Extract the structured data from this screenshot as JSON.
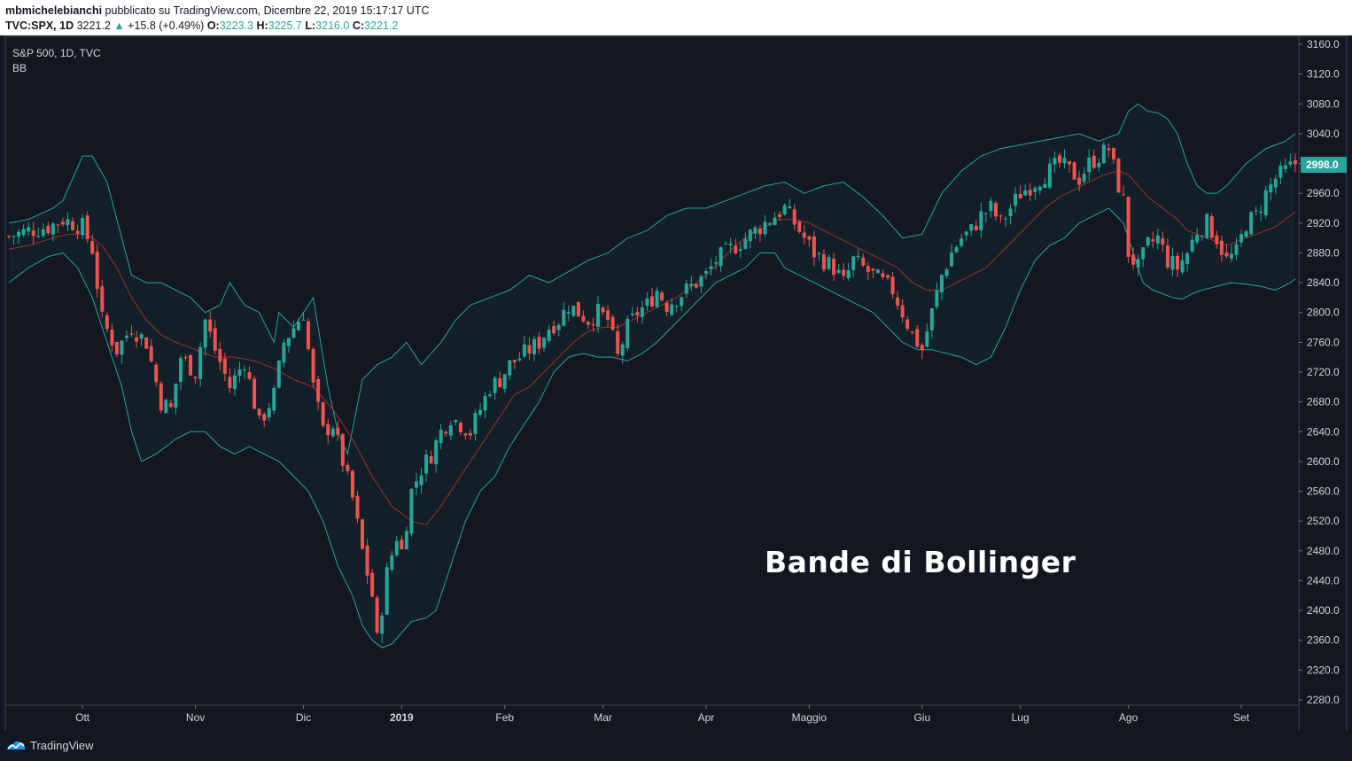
{
  "header": {
    "author": "mbmichelebianchi",
    "published": "pubblicato su TradingView.com, Dicembre 22, 2019 15:17:17 UTC",
    "symbol": "TVC:SPX, 1D",
    "last": "3221.2",
    "change": "+15.8 (+0.49%)",
    "o_label": "O:",
    "o_value": "3223.3",
    "h_label": "H:",
    "h_value": "3225.7",
    "l_label": "L:",
    "l_value": "3216.0",
    "c_label": "C:",
    "c_value": "3221.2"
  },
  "legend": {
    "title": "S&P 500, 1D, TVC",
    "indicator": "BB"
  },
  "caption": "Bande di Bollinger",
  "price_tag": "2998.0",
  "footer": {
    "brand": "TradingView"
  },
  "colors": {
    "background": "#131722",
    "up": "#26a69a",
    "down": "#ef5350",
    "band": "#26a69a",
    "basis": "#a12f2f",
    "axis_text": "#d1d4dc"
  },
  "chart_data": {
    "type": "candlestick",
    "title": "S&P 500, 1D, TVC",
    "indicator": "BB",
    "ylim": [
      2270,
      3170
    ],
    "y_ticks": [
      2280,
      2320,
      2360,
      2400,
      2440,
      2480,
      2520,
      2560,
      2600,
      2640,
      2680,
      2720,
      2760,
      2800,
      2840,
      2880,
      2920,
      2960,
      3000,
      3040,
      3080,
      3120,
      3160
    ],
    "y_tick_labels": [
      "2280.0",
      "2320.0",
      "2360.0",
      "2400.0",
      "2440.0",
      "2480.0",
      "2520.0",
      "2560.0",
      "2600.0",
      "2640.0",
      "2680.0",
      "2720.0",
      "2760.0",
      "2800.0",
      "2840.0",
      "2880.0",
      "2920.0",
      "2960.0",
      "3000.0",
      "3040.0",
      "3080.0",
      "3120.0",
      "3160.0"
    ],
    "x_labels": [
      {
        "label": "Ott",
        "bar": 15
      },
      {
        "label": "Nov",
        "bar": 38
      },
      {
        "label": "Dic",
        "bar": 60
      },
      {
        "label": "2019",
        "bar": 80
      },
      {
        "label": "Feb",
        "bar": 101
      },
      {
        "label": "Mar",
        "bar": 121
      },
      {
        "label": "Apr",
        "bar": 142
      },
      {
        "label": "Maggio",
        "bar": 163
      },
      {
        "label": "Giu",
        "bar": 186
      },
      {
        "label": "Lug",
        "bar": 206
      },
      {
        "label": "Ago",
        "bar": 228
      },
      {
        "label": "Set",
        "bar": 251
      }
    ],
    "close_anchors": [
      [
        0,
        2902
      ],
      [
        4,
        2910
      ],
      [
        8,
        2915
      ],
      [
        11,
        2925
      ],
      [
        15,
        2915
      ],
      [
        17,
        2885
      ],
      [
        19,
        2790
      ],
      [
        22,
        2750
      ],
      [
        25,
        2780
      ],
      [
        28,
        2760
      ],
      [
        31,
        2680
      ],
      [
        33,
        2670
      ],
      [
        35,
        2740
      ],
      [
        38,
        2720
      ],
      [
        40,
        2790
      ],
      [
        42,
        2750
      ],
      [
        45,
        2700
      ],
      [
        48,
        2735
      ],
      [
        51,
        2650
      ],
      [
        54,
        2690
      ],
      [
        56,
        2760
      ],
      [
        58,
        2780
      ],
      [
        60,
        2800
      ],
      [
        62,
        2700
      ],
      [
        64,
        2640
      ],
      [
        66,
        2650
      ],
      [
        68,
        2600
      ],
      [
        70,
        2550
      ],
      [
        72,
        2480
      ],
      [
        74,
        2420
      ],
      [
        75,
        2360
      ],
      [
        77,
        2450
      ],
      [
        79,
        2500
      ],
      [
        80,
        2480
      ],
      [
        82,
        2560
      ],
      [
        84,
        2590
      ],
      [
        86,
        2610
      ],
      [
        88,
        2640
      ],
      [
        90,
        2660
      ],
      [
        92,
        2650
      ],
      [
        94,
        2640
      ],
      [
        96,
        2670
      ],
      [
        98,
        2700
      ],
      [
        100,
        2710
      ],
      [
        102,
        2730
      ],
      [
        104,
        2740
      ],
      [
        106,
        2750
      ],
      [
        108,
        2760
      ],
      [
        110,
        2780
      ],
      [
        112,
        2790
      ],
      [
        114,
        2810
      ],
      [
        116,
        2800
      ],
      [
        118,
        2790
      ],
      [
        120,
        2800
      ],
      [
        122,
        2790
      ],
      [
        124,
        2740
      ],
      [
        126,
        2780
      ],
      [
        128,
        2800
      ],
      [
        130,
        2810
      ],
      [
        132,
        2830
      ],
      [
        134,
        2810
      ],
      [
        136,
        2820
      ],
      [
        138,
        2830
      ],
      [
        140,
        2840
      ],
      [
        142,
        2850
      ],
      [
        144,
        2870
      ],
      [
        146,
        2880
      ],
      [
        148,
        2890
      ],
      [
        150,
        2900
      ],
      [
        152,
        2910
      ],
      [
        154,
        2920
      ],
      [
        156,
        2930
      ],
      [
        158,
        2940
      ],
      [
        160,
        2920
      ],
      [
        162,
        2900
      ],
      [
        164,
        2880
      ],
      [
        166,
        2870
      ],
      [
        168,
        2860
      ],
      [
        170,
        2840
      ],
      [
        172,
        2870
      ],
      [
        174,
        2860
      ],
      [
        176,
        2850
      ],
      [
        178,
        2840
      ],
      [
        180,
        2830
      ],
      [
        182,
        2800
      ],
      [
        184,
        2770
      ],
      [
        186,
        2750
      ],
      [
        188,
        2800
      ],
      [
        190,
        2850
      ],
      [
        192,
        2880
      ],
      [
        194,
        2900
      ],
      [
        196,
        2910
      ],
      [
        198,
        2930
      ],
      [
        200,
        2940
      ],
      [
        202,
        2920
      ],
      [
        204,
        2940
      ],
      [
        206,
        2960
      ],
      [
        208,
        2970
      ],
      [
        210,
        2980
      ],
      [
        212,
        2990
      ],
      [
        214,
        3000
      ],
      [
        216,
        2990
      ],
      [
        218,
        2980
      ],
      [
        220,
        3000
      ],
      [
        222,
        3010
      ],
      [
        224,
        3020
      ],
      [
        226,
        2970
      ],
      [
        227,
        2950
      ],
      [
        228,
        2880
      ],
      [
        230,
        2860
      ],
      [
        232,
        2890
      ],
      [
        234,
        2900
      ],
      [
        236,
        2870
      ],
      [
        238,
        2860
      ],
      [
        240,
        2880
      ],
      [
        242,
        2910
      ],
      [
        244,
        2920
      ],
      [
        246,
        2900
      ],
      [
        248,
        2870
      ],
      [
        250,
        2880
      ],
      [
        252,
        2920
      ],
      [
        254,
        2930
      ],
      [
        256,
        2960
      ],
      [
        258,
        2980
      ],
      [
        260,
        2990
      ],
      [
        262,
        3000
      ]
    ],
    "upper_band_anchors": [
      [
        0,
        2920
      ],
      [
        4,
        2925
      ],
      [
        9,
        2940
      ],
      [
        11,
        2950
      ],
      [
        15,
        3010
      ],
      [
        17,
        3010
      ],
      [
        20,
        2975
      ],
      [
        23,
        2900
      ],
      [
        25,
        2850
      ],
      [
        28,
        2840
      ],
      [
        31,
        2840
      ],
      [
        34,
        2830
      ],
      [
        37,
        2820
      ],
      [
        40,
        2800
      ],
      [
        43,
        2810
      ],
      [
        45,
        2840
      ],
      [
        48,
        2810
      ],
      [
        51,
        2800
      ],
      [
        54,
        2760
      ],
      [
        55,
        2800
      ],
      [
        58,
        2780
      ],
      [
        62,
        2820
      ],
      [
        65,
        2700
      ],
      [
        67,
        2640
      ],
      [
        69,
        2610
      ],
      [
        72,
        2710
      ],
      [
        75,
        2730
      ],
      [
        78,
        2740
      ],
      [
        81,
        2760
      ],
      [
        84,
        2730
      ],
      [
        88,
        2760
      ],
      [
        91,
        2790
      ],
      [
        94,
        2810
      ],
      [
        98,
        2820
      ],
      [
        102,
        2830
      ],
      [
        106,
        2850
      ],
      [
        110,
        2840
      ],
      [
        114,
        2855
      ],
      [
        118,
        2870
      ],
      [
        122,
        2880
      ],
      [
        126,
        2900
      ],
      [
        130,
        2910
      ],
      [
        134,
        2930
      ],
      [
        138,
        2940
      ],
      [
        142,
        2940
      ],
      [
        146,
        2950
      ],
      [
        150,
        2960
      ],
      [
        154,
        2970
      ],
      [
        158,
        2975
      ],
      [
        162,
        2960
      ],
      [
        166,
        2970
      ],
      [
        170,
        2975
      ],
      [
        174,
        2955
      ],
      [
        178,
        2930
      ],
      [
        182,
        2900
      ],
      [
        186,
        2905
      ],
      [
        190,
        2960
      ],
      [
        194,
        2990
      ],
      [
        198,
        3010
      ],
      [
        202,
        3020
      ],
      [
        206,
        3025
      ],
      [
        210,
        3030
      ],
      [
        214,
        3035
      ],
      [
        218,
        3040
      ],
      [
        222,
        3030
      ],
      [
        226,
        3040
      ],
      [
        228,
        3070
      ],
      [
        230,
        3080
      ],
      [
        232,
        3070
      ],
      [
        234,
        3068
      ],
      [
        236,
        3060
      ],
      [
        238,
        3040
      ],
      [
        240,
        3000
      ],
      [
        242,
        2970
      ],
      [
        244,
        2960
      ],
      [
        246,
        2960
      ],
      [
        248,
        2970
      ],
      [
        252,
        3000
      ],
      [
        256,
        3020
      ],
      [
        260,
        3030
      ],
      [
        262,
        3040
      ]
    ],
    "lower_band_anchors": [
      [
        0,
        2840
      ],
      [
        4,
        2860
      ],
      [
        8,
        2875
      ],
      [
        11,
        2880
      ],
      [
        14,
        2860
      ],
      [
        17,
        2820
      ],
      [
        20,
        2760
      ],
      [
        23,
        2700
      ],
      [
        25,
        2640
      ],
      [
        27,
        2600
      ],
      [
        30,
        2610
      ],
      [
        34,
        2630
      ],
      [
        37,
        2640
      ],
      [
        40,
        2640
      ],
      [
        43,
        2620
      ],
      [
        46,
        2610
      ],
      [
        49,
        2620
      ],
      [
        52,
        2610
      ],
      [
        55,
        2600
      ],
      [
        58,
        2580
      ],
      [
        61,
        2560
      ],
      [
        64,
        2520
      ],
      [
        67,
        2460
      ],
      [
        70,
        2420
      ],
      [
        72,
        2380
      ],
      [
        74,
        2360
      ],
      [
        76,
        2350
      ],
      [
        78,
        2355
      ],
      [
        80,
        2370
      ],
      [
        82,
        2385
      ],
      [
        85,
        2390
      ],
      [
        87,
        2400
      ],
      [
        89,
        2440
      ],
      [
        91,
        2480
      ],
      [
        93,
        2520
      ],
      [
        96,
        2560
      ],
      [
        99,
        2580
      ],
      [
        102,
        2620
      ],
      [
        105,
        2650
      ],
      [
        108,
        2680
      ],
      [
        111,
        2720
      ],
      [
        114,
        2740
      ],
      [
        117,
        2745
      ],
      [
        120,
        2740
      ],
      [
        123,
        2740
      ],
      [
        126,
        2735
      ],
      [
        129,
        2745
      ],
      [
        132,
        2760
      ],
      [
        135,
        2780
      ],
      [
        138,
        2800
      ],
      [
        141,
        2820
      ],
      [
        144,
        2840
      ],
      [
        147,
        2850
      ],
      [
        150,
        2860
      ],
      [
        153,
        2880
      ],
      [
        156,
        2880
      ],
      [
        158,
        2860
      ],
      [
        161,
        2850
      ],
      [
        164,
        2840
      ],
      [
        167,
        2830
      ],
      [
        170,
        2820
      ],
      [
        173,
        2810
      ],
      [
        176,
        2800
      ],
      [
        179,
        2780
      ],
      [
        182,
        2760
      ],
      [
        185,
        2750
      ],
      [
        188,
        2750
      ],
      [
        191,
        2745
      ],
      [
        194,
        2740
      ],
      [
        197,
        2730
      ],
      [
        200,
        2740
      ],
      [
        203,
        2780
      ],
      [
        206,
        2830
      ],
      [
        209,
        2870
      ],
      [
        212,
        2890
      ],
      [
        215,
        2900
      ],
      [
        218,
        2920
      ],
      [
        221,
        2930
      ],
      [
        224,
        2940
      ],
      [
        227,
        2920
      ],
      [
        229,
        2880
      ],
      [
        231,
        2840
      ],
      [
        233,
        2830
      ],
      [
        235,
        2825
      ],
      [
        237,
        2820
      ],
      [
        239,
        2818
      ],
      [
        241,
        2825
      ],
      [
        243,
        2830
      ],
      [
        246,
        2835
      ],
      [
        249,
        2840
      ],
      [
        252,
        2838
      ],
      [
        255,
        2835
      ],
      [
        258,
        2830
      ],
      [
        261,
        2840
      ],
      [
        262,
        2845
      ]
    ],
    "basis_anchors": [
      [
        0,
        2885
      ],
      [
        4,
        2890
      ],
      [
        9,
        2900
      ],
      [
        12,
        2905
      ],
      [
        16,
        2905
      ],
      [
        19,
        2890
      ],
      [
        22,
        2860
      ],
      [
        25,
        2820
      ],
      [
        28,
        2790
      ],
      [
        31,
        2770
      ],
      [
        34,
        2760
      ],
      [
        38,
        2750
      ],
      [
        42,
        2740
      ],
      [
        46,
        2740
      ],
      [
        50,
        2735
      ],
      [
        54,
        2725
      ],
      [
        58,
        2710
      ],
      [
        62,
        2700
      ],
      [
        66,
        2670
      ],
      [
        70,
        2630
      ],
      [
        74,
        2580
      ],
      [
        78,
        2540
      ],
      [
        82,
        2520
      ],
      [
        85,
        2515
      ],
      [
        88,
        2540
      ],
      [
        91,
        2570
      ],
      [
        94,
        2600
      ],
      [
        97,
        2630
      ],
      [
        100,
        2660
      ],
      [
        103,
        2690
      ],
      [
        106,
        2700
      ],
      [
        109,
        2720
      ],
      [
        112,
        2740
      ],
      [
        115,
        2760
      ],
      [
        118,
        2775
      ],
      [
        121,
        2780
      ],
      [
        124,
        2780
      ],
      [
        127,
        2790
      ],
      [
        130,
        2800
      ],
      [
        133,
        2810
      ],
      [
        136,
        2820
      ],
      [
        139,
        2835
      ],
      [
        142,
        2850
      ],
      [
        145,
        2870
      ],
      [
        148,
        2890
      ],
      [
        151,
        2905
      ],
      [
        154,
        2915
      ],
      [
        157,
        2925
      ],
      [
        160,
        2925
      ],
      [
        163,
        2920
      ],
      [
        166,
        2910
      ],
      [
        169,
        2900
      ],
      [
        172,
        2890
      ],
      [
        175,
        2880
      ],
      [
        178,
        2870
      ],
      [
        181,
        2860
      ],
      [
        184,
        2840
      ],
      [
        187,
        2830
      ],
      [
        190,
        2830
      ],
      [
        193,
        2840
      ],
      [
        196,
        2850
      ],
      [
        199,
        2860
      ],
      [
        202,
        2880
      ],
      [
        205,
        2900
      ],
      [
        208,
        2920
      ],
      [
        211,
        2940
      ],
      [
        214,
        2955
      ],
      [
        217,
        2965
      ],
      [
        220,
        2975
      ],
      [
        223,
        2985
      ],
      [
        226,
        2990
      ],
      [
        228,
        2985
      ],
      [
        230,
        2970
      ],
      [
        232,
        2955
      ],
      [
        234,
        2945
      ],
      [
        236,
        2935
      ],
      [
        238,
        2925
      ],
      [
        240,
        2910
      ],
      [
        242,
        2905
      ],
      [
        244,
        2900
      ],
      [
        246,
        2895
      ],
      [
        248,
        2890
      ],
      [
        250,
        2895
      ],
      [
        252,
        2900
      ],
      [
        254,
        2905
      ],
      [
        256,
        2910
      ],
      [
        258,
        2915
      ],
      [
        260,
        2925
      ],
      [
        262,
        2935
      ]
    ]
  }
}
